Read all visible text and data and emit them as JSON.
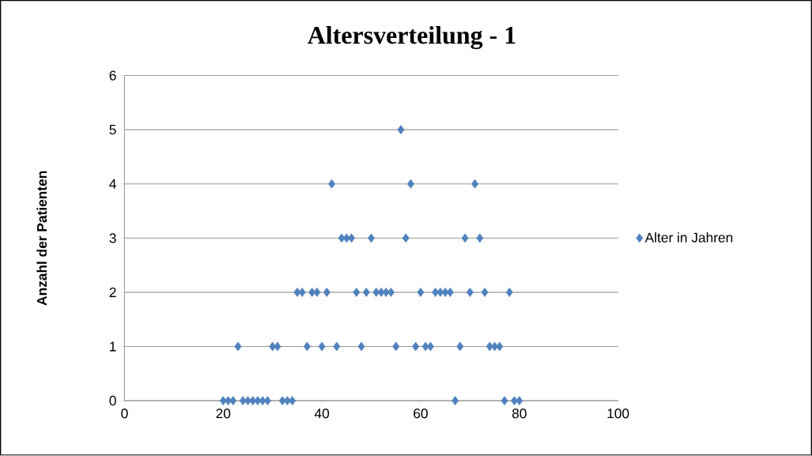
{
  "chart_data": {
    "type": "scatter",
    "title": "Altersverteilung - 1",
    "ylabel": "Anzahl der Patienten",
    "series": [
      {
        "name": "Alter in Jahren",
        "color": "#4f81bd",
        "x": [
          20,
          21,
          22,
          23,
          24,
          25,
          26,
          27,
          28,
          29,
          30,
          31,
          32,
          33,
          34,
          35,
          36,
          37,
          38,
          39,
          40,
          41,
          42,
          43,
          44,
          45,
          46,
          47,
          48,
          49,
          50,
          51,
          52,
          53,
          54,
          55,
          56,
          57,
          58,
          59,
          60,
          61,
          62,
          63,
          64,
          65,
          66,
          67,
          68,
          69,
          70,
          71,
          72,
          73,
          74,
          75,
          76,
          77,
          78,
          79,
          80
        ],
        "values": [
          0,
          0,
          0,
          1,
          0,
          0,
          0,
          0,
          0,
          0,
          1,
          1,
          0,
          0,
          0,
          2,
          2,
          1,
          2,
          2,
          1,
          2,
          4,
          1,
          3,
          3,
          3,
          2,
          1,
          2,
          3,
          2,
          2,
          2,
          2,
          1,
          5,
          3,
          4,
          1,
          2,
          1,
          1,
          2,
          2,
          2,
          2,
          0,
          1,
          3,
          2,
          4,
          3,
          2,
          1,
          1,
          1,
          0,
          2,
          0,
          0
        ]
      }
    ],
    "xlim": [
      0,
      100
    ],
    "xticks": [
      0,
      20,
      40,
      60,
      80,
      100
    ],
    "ylim": [
      0,
      6
    ],
    "yticks": [
      0,
      1,
      2,
      3,
      4,
      5,
      6
    ],
    "grid": "y",
    "legend": "right",
    "marker": "diamond"
  }
}
